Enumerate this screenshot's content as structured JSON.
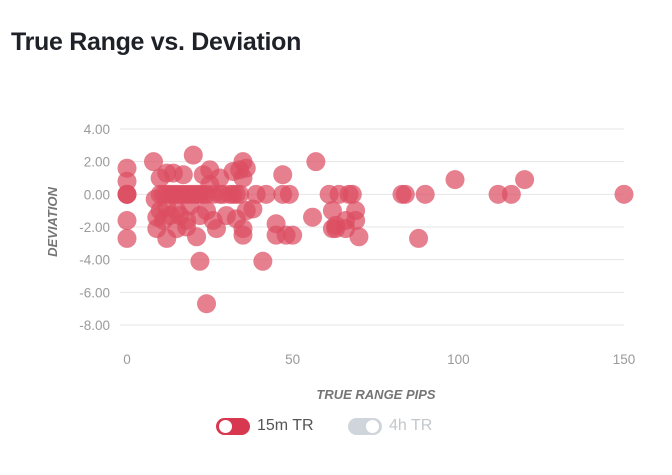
{
  "title": "True Range vs. Deviation",
  "legend": [
    {
      "label": "15m TR",
      "active": true,
      "color": "#d8384f"
    },
    {
      "label": "4h TR",
      "active": false,
      "color": "#cfd5db"
    }
  ],
  "colors": {
    "point": "#dc4d62",
    "grid": "#e4e4e4",
    "tick": "#9a9a9a",
    "axis_title": "#757575"
  },
  "chart_data": {
    "type": "scatter",
    "title": "True Range vs. Deviation",
    "xlabel": "TRUE RANGE PIPS",
    "ylabel": "DEVIATION",
    "xlim": [
      0,
      150
    ],
    "ylim": [
      -8,
      4
    ],
    "xticks": [
      "0",
      "50",
      "100",
      "150"
    ],
    "yticks": [
      "4.00",
      "2.00",
      "0.00",
      "-2.00",
      "-4.00",
      "-6.00",
      "-8.00"
    ],
    "grid": "horizontal",
    "legend_position": "bottom",
    "series": [
      {
        "name": "15m TR",
        "points": [
          [
            0,
            0
          ],
          [
            0,
            0
          ],
          [
            0,
            0
          ],
          [
            0,
            1.6
          ],
          [
            0,
            0.8
          ],
          [
            0,
            -1.6
          ],
          [
            0,
            -2.7
          ],
          [
            8,
            2.0
          ],
          [
            8.5,
            -0.3
          ],
          [
            9,
            -1.4
          ],
          [
            9,
            -2.1
          ],
          [
            10,
            0
          ],
          [
            10,
            1.0
          ],
          [
            10,
            -1.0
          ],
          [
            11,
            0
          ],
          [
            11,
            -1.6
          ],
          [
            12,
            0
          ],
          [
            12,
            1.3
          ],
          [
            12,
            -2.7
          ],
          [
            12,
            -0.8
          ],
          [
            13,
            0
          ],
          [
            13,
            -1.3
          ],
          [
            14,
            0
          ],
          [
            14,
            1.3
          ],
          [
            15,
            0
          ],
          [
            15,
            -1.0
          ],
          [
            15,
            -2.1
          ],
          [
            16,
            0
          ],
          [
            16,
            -1.3
          ],
          [
            17,
            0
          ],
          [
            17,
            1.2
          ],
          [
            18,
            0
          ],
          [
            18,
            -1.6
          ],
          [
            18,
            -2.0
          ],
          [
            19,
            0
          ],
          [
            19,
            -0.7
          ],
          [
            20,
            2.4
          ],
          [
            20,
            0
          ],
          [
            21,
            0
          ],
          [
            21,
            -2.6
          ],
          [
            22,
            0
          ],
          [
            22,
            -1.3
          ],
          [
            22,
            -4.1
          ],
          [
            23,
            0
          ],
          [
            23,
            1.2
          ],
          [
            24,
            0
          ],
          [
            24,
            -1.0
          ],
          [
            24,
            -6.7
          ],
          [
            25,
            1.5
          ],
          [
            25,
            0.6
          ],
          [
            26,
            0
          ],
          [
            26,
            -1.6
          ],
          [
            27,
            -2.1
          ],
          [
            28,
            0
          ],
          [
            28,
            1.0
          ],
          [
            29,
            0
          ],
          [
            30,
            -1.3
          ],
          [
            31,
            0
          ],
          [
            32,
            1.4
          ],
          [
            32,
            0
          ],
          [
            33,
            0
          ],
          [
            33,
            -1.5
          ],
          [
            34,
            1.5
          ],
          [
            34,
            0
          ],
          [
            35,
            2.0
          ],
          [
            35,
            1.0
          ],
          [
            35,
            -2.1
          ],
          [
            35,
            -2.5
          ],
          [
            36,
            1.6
          ],
          [
            36,
            -1.0
          ],
          [
            38,
            -0.9
          ],
          [
            39,
            0
          ],
          [
            41,
            -4.1
          ],
          [
            42,
            0
          ],
          [
            45,
            -1.8
          ],
          [
            45,
            -2.5
          ],
          [
            47,
            0
          ],
          [
            47,
            1.2
          ],
          [
            48,
            -2.5
          ],
          [
            49,
            0
          ],
          [
            50,
            -2.5
          ],
          [
            56,
            -1.4
          ],
          [
            57,
            2.0
          ],
          [
            61,
            0
          ],
          [
            62,
            -1.0
          ],
          [
            62,
            -2.1
          ],
          [
            63,
            -1.9
          ],
          [
            63,
            -2.1
          ],
          [
            64,
            0
          ],
          [
            66,
            -1.6
          ],
          [
            66,
            -2.1
          ],
          [
            67,
            0
          ],
          [
            68,
            0
          ],
          [
            69,
            -1.0
          ],
          [
            69,
            -1.6
          ],
          [
            70,
            -2.6
          ],
          [
            83,
            0
          ],
          [
            84,
            0
          ],
          [
            88,
            -2.7
          ],
          [
            90,
            0
          ],
          [
            99,
            0.9
          ],
          [
            112,
            0
          ],
          [
            116,
            0
          ],
          [
            120,
            0.9
          ],
          [
            150,
            0
          ]
        ]
      }
    ]
  }
}
